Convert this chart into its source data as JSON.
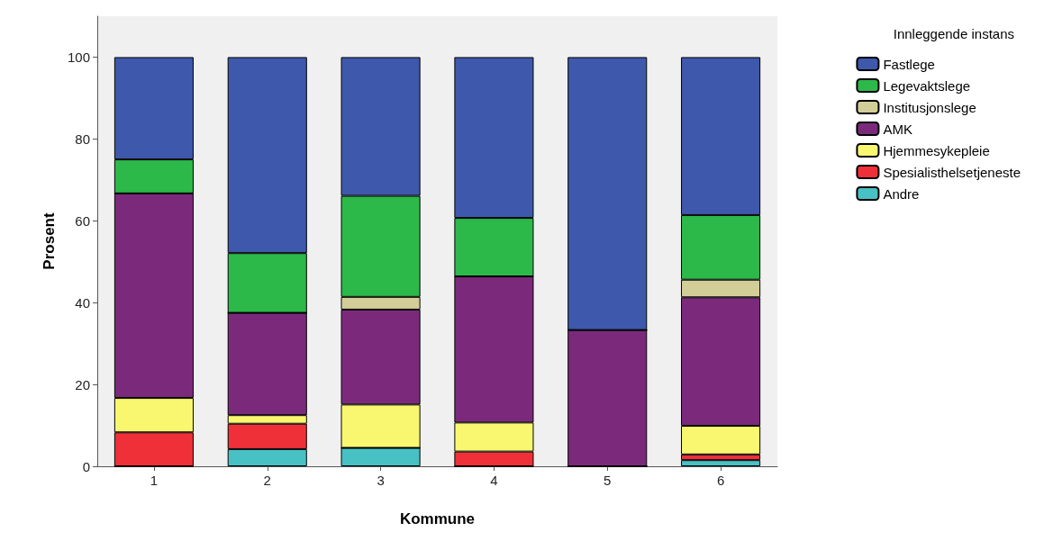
{
  "chart_data": {
    "type": "bar",
    "stacked": true,
    "xlabel": "Kommune",
    "ylabel": "Prosent",
    "legend_title": "Innleggende instans",
    "legend": "top right",
    "grid": false,
    "categories": [
      "1",
      "2",
      "3",
      "4",
      "5",
      "6"
    ],
    "ylim": [
      0,
      110
    ],
    "yticks": [
      0,
      20,
      40,
      60,
      80,
      100
    ],
    "series": [
      {
        "name": "Andre",
        "color": "#48c1c4",
        "values": [
          0,
          4.2,
          4.5,
          0,
          0,
          1.5
        ]
      },
      {
        "name": "Spesialisthelsetjeneste",
        "color": "#ef3038",
        "values": [
          8.3,
          6.2,
          0,
          3.6,
          0,
          1.4
        ]
      },
      {
        "name": "Hjemmesykepleie",
        "color": "#f9f76f",
        "values": [
          8.4,
          2.1,
          10.6,
          7.1,
          0,
          7.0
        ]
      },
      {
        "name": "AMK",
        "color": "#7b2a7b",
        "values": [
          50,
          25,
          23.2,
          35.7,
          33.3,
          31.4
        ]
      },
      {
        "name": "Institusjonslege",
        "color": "#d3ce97",
        "values": [
          0,
          0,
          3.1,
          0,
          0,
          4.3
        ]
      },
      {
        "name": "Legevaktslege",
        "color": "#2db84a",
        "values": [
          8.3,
          14.6,
          24.7,
          14.3,
          0,
          15.8
        ]
      },
      {
        "name": "Fastlege",
        "color": "#3e58ac",
        "values": [
          25,
          47.9,
          33.9,
          39.3,
          66.7,
          38.6
        ]
      }
    ]
  }
}
